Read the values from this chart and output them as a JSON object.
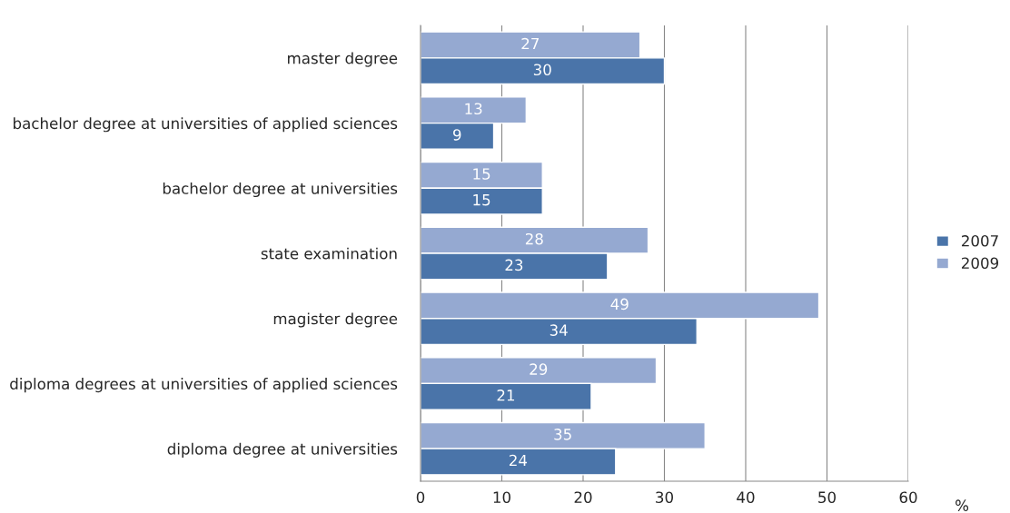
{
  "chart_data": {
    "type": "bar",
    "orientation": "horizontal",
    "xlabel": "%",
    "categories": [
      "master degree",
      "bachelor degree at universities of applied sciences",
      "bachelor degree at universities",
      "state examination",
      "magister degree",
      "diploma degrees at universities of applied sciences",
      "diploma degree at universities"
    ],
    "series": [
      {
        "name": "2009",
        "color": "#95a9d1",
        "values": [
          27,
          13,
          15,
          28,
          49,
          29,
          35
        ]
      },
      {
        "name": "2007",
        "color": "#4a74a9",
        "values": [
          30,
          9,
          15,
          23,
          34,
          21,
          24
        ]
      }
    ],
    "xlim": [
      0,
      60
    ],
    "xticks": [
      0,
      10,
      20,
      30,
      40,
      50,
      60
    ],
    "grid": "x",
    "legend": "right",
    "data_labels": true
  }
}
